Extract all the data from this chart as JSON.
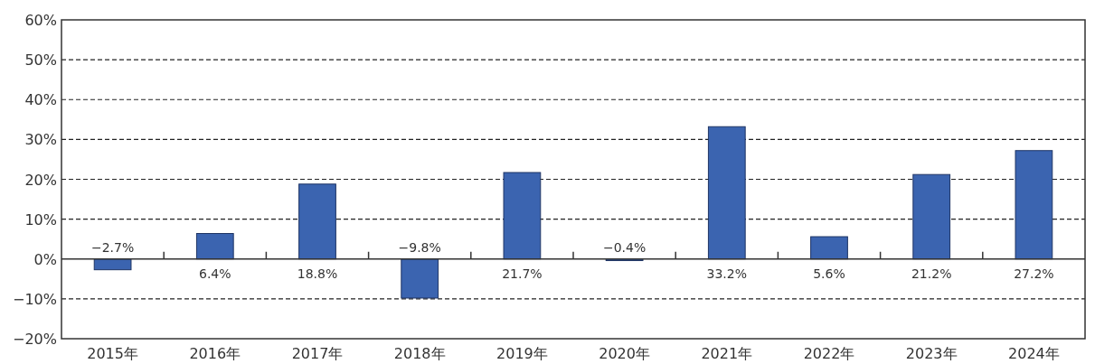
{
  "chart_data": {
    "type": "bar",
    "categories": [
      "2015年",
      "2016年",
      "2017年",
      "2018年",
      "2019年",
      "2020年",
      "2021年",
      "2022年",
      "2023年",
      "2024年"
    ],
    "values": [
      -2.7,
      6.4,
      18.8,
      -9.8,
      21.7,
      -0.4,
      33.2,
      5.6,
      21.2,
      27.2
    ],
    "value_labels": [
      "−2.7%",
      "6.4%",
      "18.8%",
      "−9.8%",
      "21.7%",
      "−0.4%",
      "33.2%",
      "5.6%",
      "21.2%",
      "27.2%"
    ],
    "color": "#3b64b0",
    "ylim": [
      -20,
      60
    ],
    "yticks": [
      {
        "value": -20,
        "label": "−20%"
      },
      {
        "value": -10,
        "label": "−10%"
      },
      {
        "value": 0,
        "label": "0%"
      },
      {
        "value": 10,
        "label": "10%"
      },
      {
        "value": 20,
        "label": "20%"
      },
      {
        "value": 30,
        "label": "30%"
      },
      {
        "value": 40,
        "label": "40%"
      },
      {
        "value": 50,
        "label": "50%"
      },
      {
        "value": 60,
        "label": "60%"
      }
    ],
    "grid": "y"
  }
}
